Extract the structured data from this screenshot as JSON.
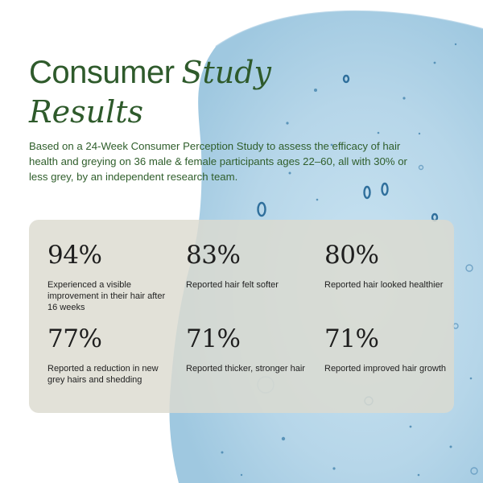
{
  "heading": {
    "word1": "Consumer",
    "word2": "Study",
    "word3": "Results"
  },
  "intro": "Based on a 24-Week Consumer Perception Study to assess the efficacy of hair health and greying on 36 male & female participants ages 22–60, all with 30% or less grey, by an independent research team.",
  "stats": [
    {
      "value": "94%",
      "label": "Experienced a visible improvement in their hair after 16 weeks"
    },
    {
      "value": "83%",
      "label": "Reported hair felt softer"
    },
    {
      "value": "80%",
      "label": "Reported hair looked healthier"
    },
    {
      "value": "77%",
      "label": "Reported a reduction in new grey hairs and shedding"
    },
    {
      "value": "71%",
      "label": "Reported thicker, stronger hair"
    },
    {
      "value": "71%",
      "label": "Reported improved hair growth"
    }
  ],
  "colors": {
    "heading": "#2e5a2b",
    "intro_text": "#2f5e2b",
    "card": "#dcdbcf",
    "serum": "#b8d8ea"
  }
}
